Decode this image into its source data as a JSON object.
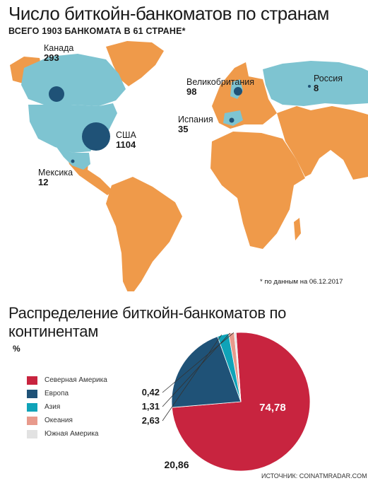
{
  "header": {
    "title": "Число биткойн-банкоматов по странам",
    "subtitle_prefix": "ВСЕГО ",
    "subtitle_total": "1903",
    "subtitle_mid": " БАНКОМАТА В ",
    "subtitle_countries": "61",
    "subtitle_suffix": " СТРАНЕ*"
  },
  "map": {
    "colors": {
      "land": "#ef9a4a",
      "highlight": "#7ec4d1",
      "bubble": "#1f5277"
    },
    "countries": [
      {
        "name": "Канада",
        "value": "293"
      },
      {
        "name": "США",
        "value": "1104"
      },
      {
        "name": "Мексика",
        "value": "12"
      },
      {
        "name": "Великобритания",
        "value": "98"
      },
      {
        "name": "Испания",
        "value": "35"
      },
      {
        "name": "Россия",
        "value": "8"
      }
    ],
    "footnote": "* по данным на 06.12.2017"
  },
  "chart_data": {
    "type": "pie",
    "title": "Распределение биткойн-банкоматов по континентам",
    "unit": "%",
    "series": [
      {
        "name": "Северная Америка",
        "value": 74.78,
        "label": "74,78",
        "color": "#c8243f"
      },
      {
        "name": "Европа",
        "value": 20.86,
        "label": "20,86",
        "color": "#1f5277"
      },
      {
        "name": "Азия",
        "value": 2.63,
        "label": "2,63",
        "color": "#0fa3b8"
      },
      {
        "name": "Океания",
        "value": 1.31,
        "label": "1,31",
        "color": "#e89a8c"
      },
      {
        "name": "Южная Америка",
        "value": 0.42,
        "label": "0,42",
        "color": "#e2e2e2"
      }
    ],
    "legend_position": "left"
  },
  "source": "ИСТОЧНИК: COINATMRADAR.COM"
}
